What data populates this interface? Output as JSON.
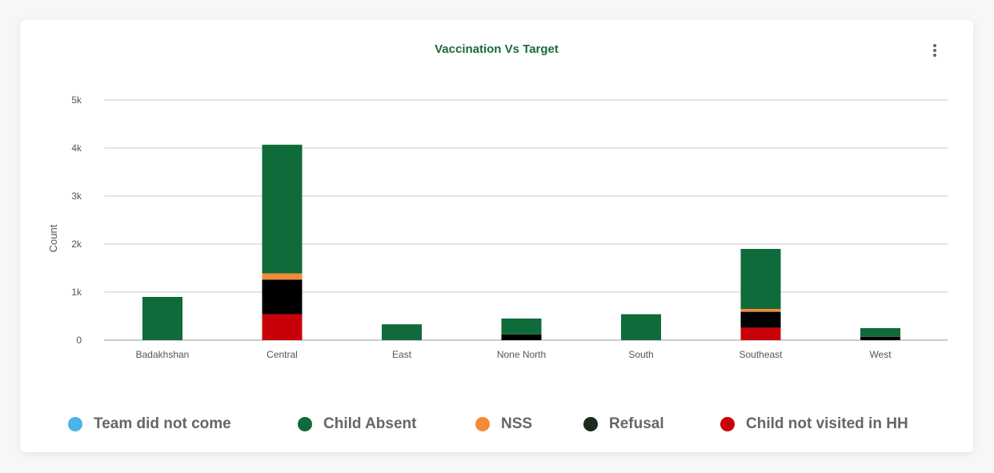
{
  "header": {
    "title": "Vaccination Vs Target",
    "menu_icon": "more-vertical-icon"
  },
  "chart_data": {
    "type": "bar",
    "stacked": true,
    "title": "Vaccination Vs Target",
    "xlabel": "",
    "ylabel": "Count",
    "ylim": [
      0,
      5000
    ],
    "yticks": [
      0,
      1000,
      2000,
      3000,
      4000,
      5000
    ],
    "ytick_labels": [
      "0",
      "1k",
      "2k",
      "3k",
      "4k",
      "5k"
    ],
    "grid": true,
    "legend_position": "bottom",
    "categories": [
      "Badakhshan",
      "Central",
      "East",
      "None North",
      "South",
      "Southeast",
      "West"
    ],
    "series": [
      {
        "name": "Team did not come",
        "color": "#4ab3e8",
        "values": [
          0,
          0,
          0,
          0,
          0,
          0,
          0
        ]
      },
      {
        "name": "Child Absent",
        "color": "#0f6b3a",
        "values": [
          900,
          2680,
          330,
          330,
          540,
          1250,
          180
        ]
      },
      {
        "name": "NSS",
        "color": "#f28c38",
        "values": [
          0,
          130,
          0,
          0,
          0,
          60,
          0
        ]
      },
      {
        "name": "Refusal",
        "color": "#000000",
        "values": [
          0,
          720,
          0,
          120,
          0,
          330,
          70
        ]
      },
      {
        "name": "Child not visited in HH",
        "color": "#c8000a",
        "values": [
          0,
          540,
          0,
          0,
          0,
          260,
          0
        ]
      }
    ],
    "stack_order": [
      "Child not visited in HH",
      "Refusal",
      "NSS",
      "Child Absent",
      "Team did not come"
    ]
  },
  "legend": {
    "items": [
      {
        "label": "Team did not come",
        "color": "#4ab3e8"
      },
      {
        "label": "Child Absent",
        "color": "#0f6b3a"
      },
      {
        "label": "NSS",
        "color": "#f28c38"
      },
      {
        "label": "Refusal",
        "color": "#1f2a1f"
      },
      {
        "label": "Child not visited in HH",
        "color": "#c8000a"
      }
    ]
  }
}
